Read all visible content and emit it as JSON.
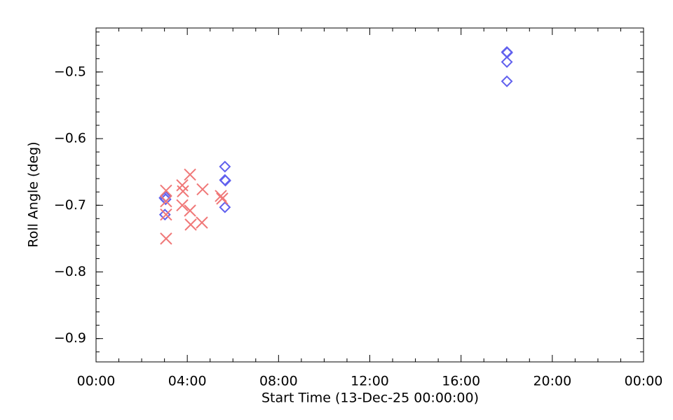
{
  "chart_data": {
    "type": "scatter",
    "xlabel": "Start Time (13-Dec-25 00:00:00)",
    "ylabel": "Roll Angle (deg)",
    "xlim": [
      0,
      24
    ],
    "ylim": [
      -0.935,
      -0.434
    ],
    "xticks": [
      {
        "value": 0,
        "label": "00:00"
      },
      {
        "value": 4,
        "label": "04:00"
      },
      {
        "value": 8,
        "label": "08:00"
      },
      {
        "value": 12,
        "label": "12:00"
      },
      {
        "value": 16,
        "label": "16:00"
      },
      {
        "value": 20,
        "label": "20:00"
      },
      {
        "value": 24,
        "label": "00:00"
      }
    ],
    "yticks": [
      {
        "value": -0.9,
        "label": "−0.9"
      },
      {
        "value": -0.8,
        "label": "−0.8"
      },
      {
        "value": -0.7,
        "label": "−0.7"
      },
      {
        "value": -0.6,
        "label": "−0.6"
      },
      {
        "value": -0.5,
        "label": "−0.5"
      }
    ],
    "x_minor_per_major": 4,
    "y_minor_per_major": 5,
    "series": [
      {
        "color": "#6060ee",
        "marker": "diamond",
        "x": [
          3.05,
          3.0,
          3.05,
          3.02,
          5.65,
          5.65,
          5.67,
          5.65,
          18.01,
          18.02,
          18.01,
          18.01
        ],
        "values": [
          -0.687,
          -0.689,
          -0.691,
          -0.714,
          -0.642,
          -0.662,
          -0.663,
          -0.703,
          -0.47,
          -0.471,
          -0.485,
          -0.514
        ]
      },
      {
        "color": "#f07878",
        "marker": "x",
        "x": [
          3.07,
          3.07,
          3.07,
          3.07,
          3.78,
          3.81,
          3.78,
          4.12,
          4.12,
          4.15,
          4.67,
          4.64,
          5.47,
          5.53
        ],
        "values": [
          -0.678,
          -0.694,
          -0.714,
          -0.75,
          -0.67,
          -0.679,
          -0.7,
          -0.654,
          -0.708,
          -0.729,
          -0.676,
          -0.726,
          -0.686,
          -0.69
        ]
      }
    ]
  }
}
